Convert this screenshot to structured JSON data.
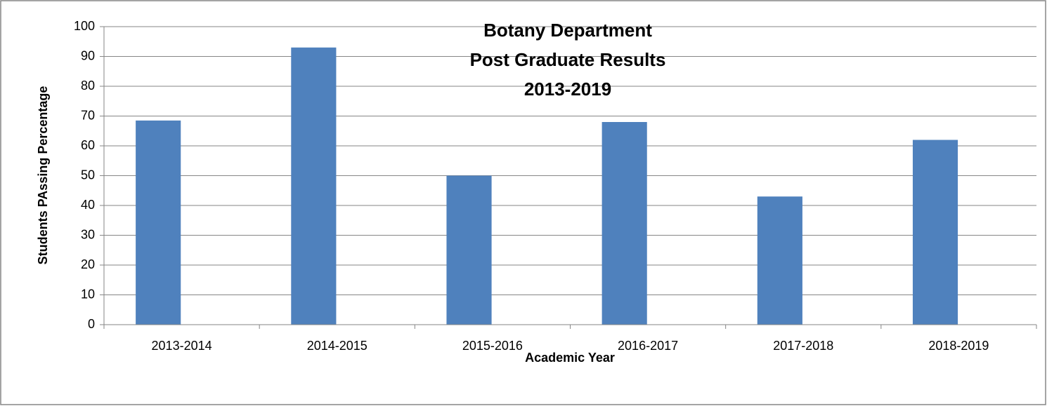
{
  "chart_data": {
    "type": "bar",
    "title": [
      "Botany Department",
      "Post Graduate Results",
      "2013-2019"
    ],
    "x_label": "Academic Year",
    "y_label": "Students PAssing Percentage",
    "categories": [
      "2013-2014",
      "2014-2015",
      "2015-2016",
      "2016-2017",
      "2017-2018",
      "2018-2019"
    ],
    "values": [
      68.5,
      93,
      50,
      68,
      43,
      62
    ],
    "color": "#4f81bd",
    "ylim": [
      0,
      100
    ],
    "yticks": [
      0,
      10,
      20,
      30,
      40,
      50,
      60,
      70,
      80,
      90,
      100
    ],
    "grid": true
  }
}
